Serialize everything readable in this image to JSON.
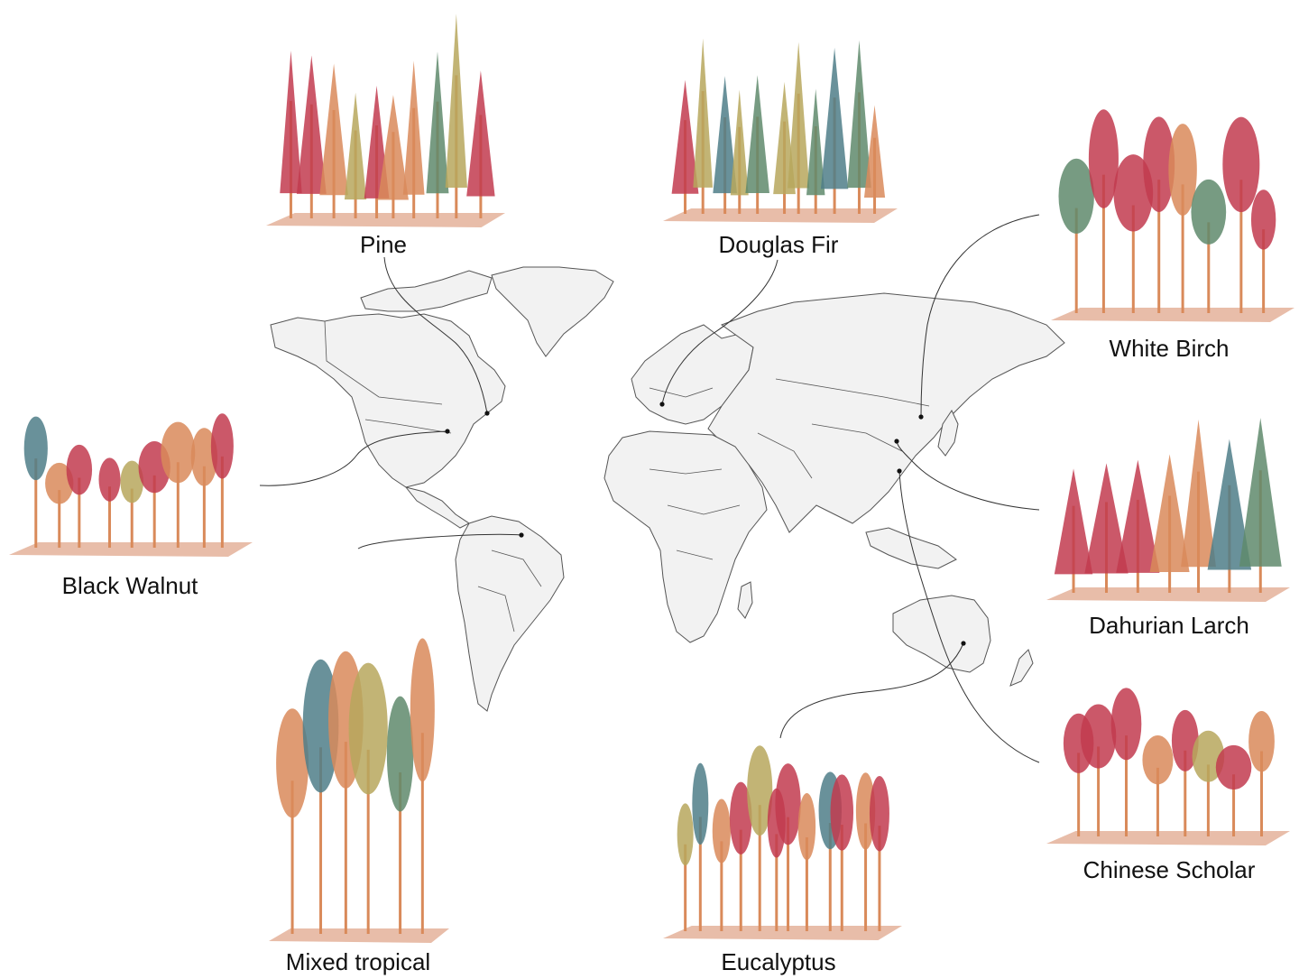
{
  "figure": {
    "sites": [
      {
        "id": "pine",
        "label": "Pine"
      },
      {
        "id": "douglas-fir",
        "label": "Douglas Fir"
      },
      {
        "id": "white-birch",
        "label": "White Birch"
      },
      {
        "id": "black-walnut",
        "label": "Black Walnut"
      },
      {
        "id": "dahurian-larch",
        "label": "Dahurian Larch"
      },
      {
        "id": "mixed-tropical",
        "label": "Mixed tropical"
      },
      {
        "id": "chinese-scholar",
        "label": "Chinese Scholar"
      },
      {
        "id": "eucalyptus",
        "label": "Eucalyptus"
      }
    ],
    "colors": {
      "land": "#f2f2f2",
      "border": "#555555",
      "leader": "#333333",
      "tree_red": "#c23b4f",
      "tree_orange": "#d98a5a",
      "tree_olive": "#b7a75d",
      "tree_green": "#5f8a6c",
      "tree_teal": "#4f7e88",
      "ground": "#e6b6a0"
    }
  }
}
